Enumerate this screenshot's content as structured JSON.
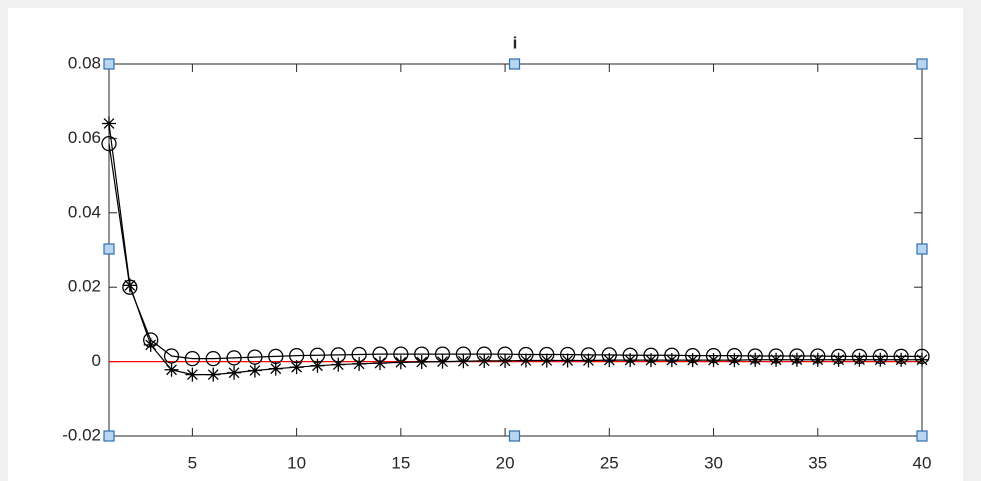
{
  "chart_data": {
    "type": "line",
    "title": "i",
    "x": [
      1,
      2,
      3,
      4,
      5,
      6,
      7,
      8,
      9,
      10,
      11,
      12,
      13,
      14,
      15,
      16,
      17,
      18,
      19,
      20,
      21,
      22,
      23,
      24,
      25,
      26,
      27,
      28,
      29,
      30,
      31,
      32,
      33,
      34,
      35,
      36,
      37,
      38,
      39,
      40
    ],
    "series": [
      {
        "color": "#000000",
        "marker": "o",
        "values": [
          0.0586,
          0.02,
          0.0058,
          0.0015,
          0.0008,
          0.0008,
          0.001,
          0.0012,
          0.0014,
          0.0016,
          0.0017,
          0.0018,
          0.0019,
          0.002,
          0.002,
          0.002,
          0.002,
          0.002,
          0.002,
          0.002,
          0.0019,
          0.0019,
          0.0019,
          0.0018,
          0.0018,
          0.0017,
          0.0017,
          0.0017,
          0.0016,
          0.0016,
          0.0016,
          0.0015,
          0.0015,
          0.0015,
          0.0015,
          0.0014,
          0.0014,
          0.0014,
          0.0014,
          0.0014
        ]
      },
      {
        "color": "#000000",
        "marker": "*",
        "values": [
          0.064,
          0.0205,
          0.0045,
          -0.0022,
          -0.0035,
          -0.0035,
          -0.003,
          -0.0024,
          -0.0019,
          -0.0015,
          -0.0011,
          -0.0008,
          -0.0006,
          -0.0004,
          -0.0002,
          -0.0001,
          0,
          0.0001,
          0.0002,
          0.0002,
          0.0003,
          0.0003,
          0.0003,
          0.0003,
          0.0004,
          0.0004,
          0.0004,
          0.0004,
          0.0004,
          0.0004,
          0.0004,
          0.0005,
          0.0005,
          0.0005,
          0.0005,
          0.0005,
          0.0005,
          0.0005,
          0.0005,
          0.0005
        ]
      }
    ],
    "reference_line": {
      "value": 0,
      "color": "#ff0000"
    },
    "xlim": [
      1,
      40
    ],
    "xticks": [
      5,
      10,
      15,
      20,
      25,
      30,
      35,
      40
    ],
    "ylim": [
      -0.02,
      0.08
    ],
    "yticks": [
      -0.02,
      0,
      0.02,
      0.04,
      0.06,
      0.08
    ]
  }
}
